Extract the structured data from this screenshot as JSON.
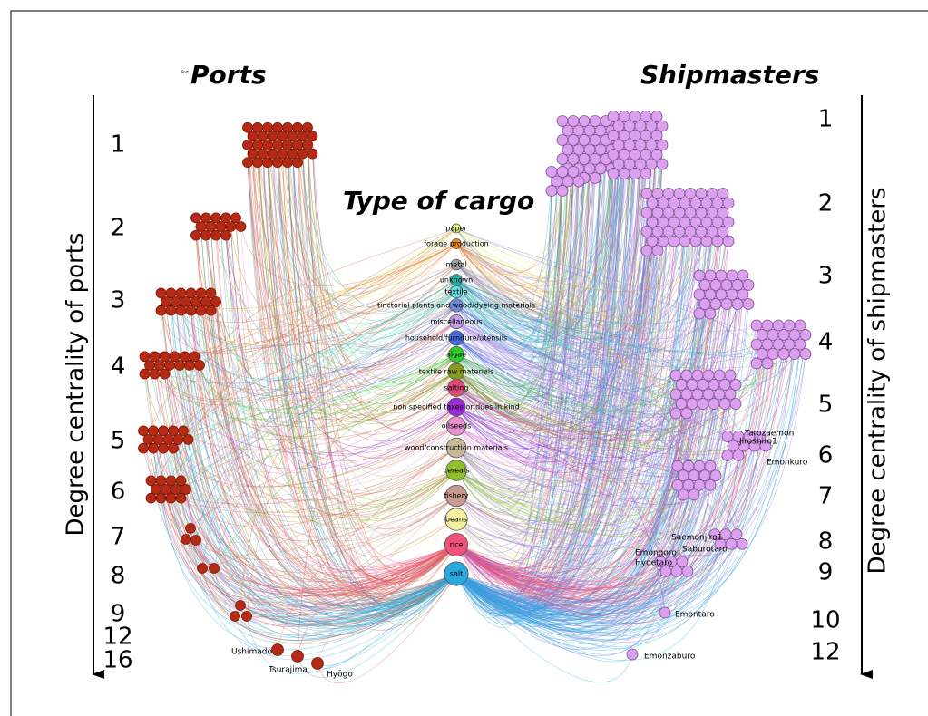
{
  "titles": {
    "ports": "Ports",
    "port_small": "Port",
    "shipmasters": "Shipmasters",
    "cargo": "Type of cargo"
  },
  "axes": {
    "ports": "Degree centrality of ports",
    "shipmasters": "Degree centrality of shipmasters"
  },
  "port_ranks": [
    1,
    2,
    3,
    4,
    5,
    6,
    7,
    8,
    9,
    12,
    16
  ],
  "shipmaster_ranks": [
    1,
    2,
    3,
    4,
    5,
    6,
    7,
    8,
    9,
    10,
    12
  ],
  "cargo": [
    "paper",
    "forage production",
    "metal",
    "unknown",
    "textile",
    "tinctorial plants and wood/dyeing materials",
    "miscellaneous",
    "household/furniture/utensils",
    "algae",
    "textile raw materials",
    "salting",
    "non specified taxes or dues in kind",
    "oilseeds",
    "wood/construction materials",
    "cereals",
    "fishery",
    "beans",
    "rice",
    "salt"
  ],
  "port_names": [
    "Ushimado",
    "Tsurajima",
    "Hyōgo"
  ],
  "shipmaster_names": [
    "Tarozaemon",
    "Jiroshiro1",
    "Emonkuro",
    "Saemonjiro1",
    "Saburotaro",
    "Emongoro",
    "Hyoetaro",
    "Emontaro",
    "Emonzaburo"
  ]
}
